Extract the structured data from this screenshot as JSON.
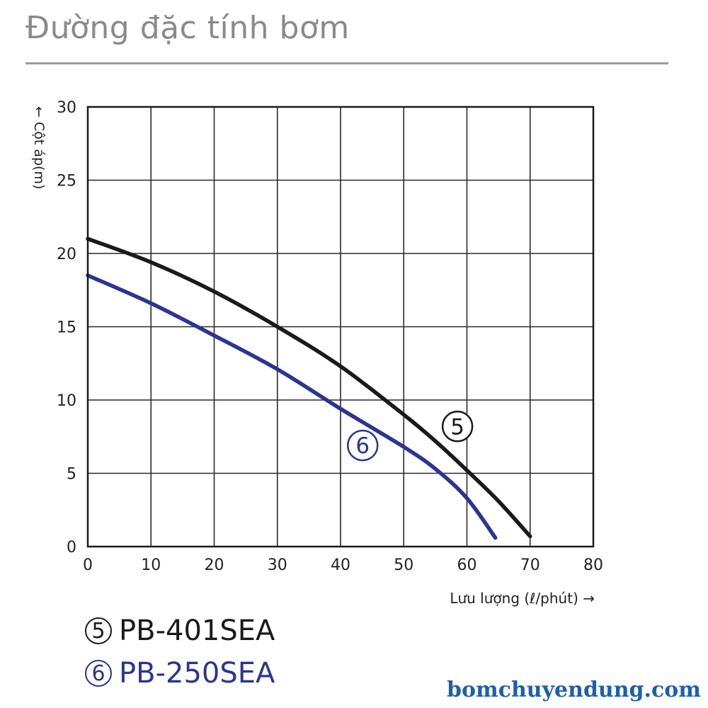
{
  "header": {
    "title": "Đường đặc tính bơm"
  },
  "chart_data": {
    "type": "line",
    "ylabel": "← Cột áp(m)",
    "xlabel": "Lưu lượng  (ℓ/phút) →",
    "xlim": [
      0,
      80
    ],
    "ylim": [
      0,
      30
    ],
    "x_ticks": [
      "0",
      "10",
      "20",
      "30",
      "40",
      "50",
      "60",
      "70",
      "80"
    ],
    "y_ticks": [
      "0",
      "5",
      "10",
      "15",
      "20",
      "25",
      "30"
    ],
    "grid": true,
    "series": [
      {
        "name": "PB-401SEA",
        "marker_label": "5",
        "color": "#1a1a1a",
        "x": [
          0,
          10,
          20,
          30,
          40,
          50,
          55,
          60,
          65,
          70
        ],
        "y": [
          21,
          19.4,
          17.4,
          15,
          12.3,
          9,
          7.2,
          5.2,
          3.1,
          0.7
        ]
      },
      {
        "name": "PB-250SEA",
        "marker_label": "6",
        "color": "#2a3591",
        "x": [
          0,
          10,
          20,
          30,
          40,
          50,
          55,
          60,
          64.5
        ],
        "y": [
          18.5,
          16.6,
          14.4,
          12.1,
          9.4,
          6.8,
          5.3,
          3.3,
          0.6
        ]
      }
    ]
  },
  "legend": {
    "items": [
      {
        "marker": "5",
        "label": "PB-401SEA"
      },
      {
        "marker": "6",
        "label": "PB-250SEA"
      }
    ]
  },
  "watermark": "bomchuyendung.com"
}
